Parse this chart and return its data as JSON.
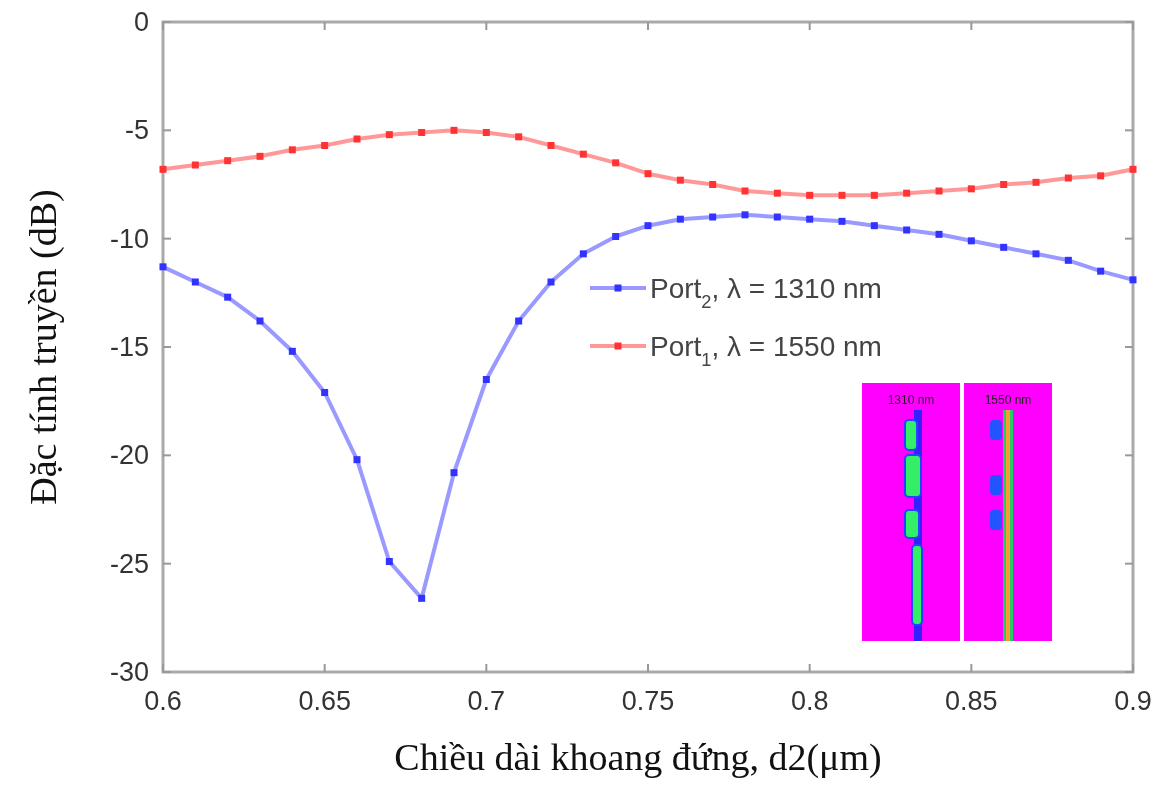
{
  "chart_data": {
    "type": "line",
    "xlabel": "Chiều dài khoang đứng, d2(μm)",
    "ylabel": "Đặc tính truyền (dB)",
    "x": [
      0.6,
      0.61,
      0.62,
      0.63,
      0.64,
      0.65,
      0.66,
      0.67,
      0.68,
      0.69,
      0.7,
      0.71,
      0.72,
      0.73,
      0.74,
      0.75,
      0.76,
      0.77,
      0.78,
      0.79,
      0.8,
      0.81,
      0.82,
      0.83,
      0.84,
      0.85,
      0.86,
      0.87,
      0.88,
      0.89,
      0.9
    ],
    "series": [
      {
        "name": "Port$_{2}$, λ = 1310 nm",
        "color": "#3333ff",
        "values": [
          -11.3,
          -12.0,
          -12.7,
          -13.8,
          -15.2,
          -17.1,
          -20.2,
          -24.9,
          -26.6,
          -20.8,
          -16.5,
          -13.8,
          -12.0,
          -10.7,
          -9.9,
          -9.4,
          -9.1,
          -9.0,
          -8.9,
          -9.0,
          -9.1,
          -9.2,
          -9.4,
          -9.6,
          -9.8,
          -10.1,
          -10.4,
          -10.7,
          -11.0,
          -11.5,
          -11.9
        ]
      },
      {
        "name": "Port$_{1}$, λ = 1550 nm",
        "color": "#ff3333",
        "values": [
          -6.8,
          -6.6,
          -6.4,
          -6.2,
          -5.9,
          -5.7,
          -5.4,
          -5.2,
          -5.1,
          -5.0,
          -5.1,
          -5.3,
          -5.7,
          -6.1,
          -6.5,
          -7.0,
          -7.3,
          -7.5,
          -7.8,
          -7.9,
          -8.0,
          -8.0,
          -8.0,
          -7.9,
          -7.8,
          -7.7,
          -7.5,
          -7.4,
          -7.2,
          -7.1,
          -6.8
        ]
      }
    ],
    "xlim": [
      0.6,
      0.9
    ],
    "xticks": [
      0.6,
      0.65,
      0.7,
      0.75,
      0.8,
      0.85,
      0.9
    ],
    "ylim": [
      -30,
      0
    ],
    "yticks": [
      -30,
      -25,
      -20,
      -15,
      -10,
      -5,
      0
    ],
    "marker": "square",
    "line_style": "solid",
    "legend": "right",
    "grid": false,
    "annotations": [
      "1310 nm",
      "1550 nm"
    ]
  }
}
